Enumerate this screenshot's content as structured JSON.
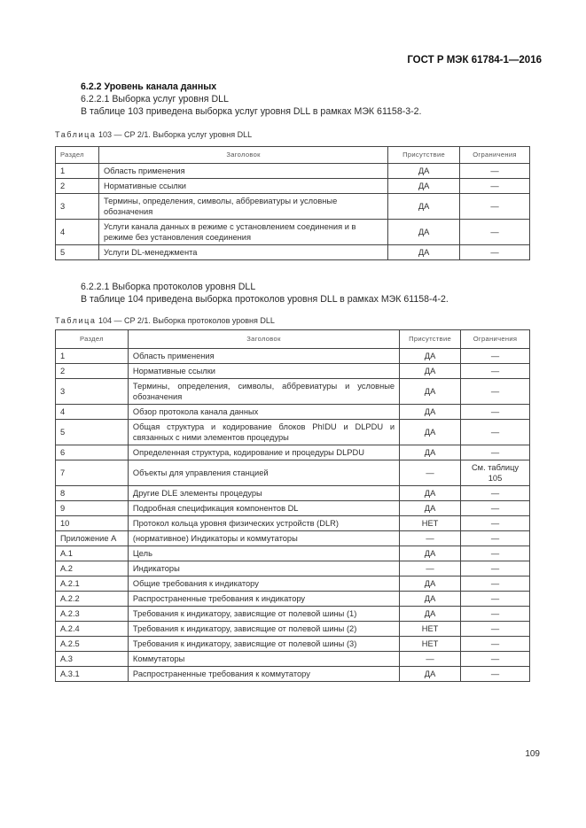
{
  "header": {
    "doc_id": "ГОСТ Р МЭК 61784-1—2016"
  },
  "section": {
    "heading": "6.2.2 Уровень канала данных",
    "sub1": "6.2.2.1 Выборка услуг уровня DLL",
    "text1": "В таблице 103 приведена выборка услуг уровня DLL в рамках МЭК 61158-3-2.",
    "sub2": "6.2.2.1 Выборка протоколов уровня DLL",
    "text2": "В таблице 104 приведена выборка протоколов уровня DLL в рамках МЭК 61158-4-2."
  },
  "table103": {
    "caption_prefix": "Таблица",
    "caption_rest": " 103 — CP 2/1. Выборка услуг уровня DLL",
    "columns": [
      "Раздел",
      "Заголовок",
      "Присутствие",
      "Ограничения"
    ],
    "rows": [
      [
        "1",
        "Область применения",
        "ДА",
        "—"
      ],
      [
        "2",
        "Нормативные ссылки",
        "ДА",
        "—"
      ],
      [
        "3",
        "Термины, определения, символы, аббревиатуры и условные обозначения",
        "ДА",
        "—"
      ],
      [
        "4",
        "Услуги канала данных в режиме с установлением соединения и в режиме без установления соединения",
        "ДА",
        "—"
      ],
      [
        "5",
        "Услуги DL-менеджмента",
        "ДА",
        "—"
      ]
    ]
  },
  "table104": {
    "caption_prefix": "Таблица",
    "caption_rest": " 104 — CP 2/1. Выборка протоколов уровня DLL",
    "columns": [
      "Раздел",
      "Заголовок",
      "Присутствие",
      "Ограничения"
    ],
    "rows": [
      [
        "1",
        "Область применения",
        "ДА",
        "—"
      ],
      [
        "2",
        "Нормативные ссылки",
        "ДА",
        "—"
      ],
      [
        "3",
        "Термины, определения, символы, аббревиатуры и условные обозначения",
        "ДА",
        "—"
      ],
      [
        "4",
        "Обзор протокола канала данных",
        "ДА",
        "—"
      ],
      [
        "5",
        "Общая структура и кодирование блоков PhIDU и DLPDU и связанных с ними элементов процедуры",
        "ДА",
        "—"
      ],
      [
        "6",
        "Определенная структура, кодирование и процедуры DLPDU",
        "ДА",
        "—"
      ],
      [
        "7",
        "Объекты для управления станцией",
        "—",
        "См. таблицу 105"
      ],
      [
        "8",
        "Другие DLE элементы процедуры",
        "ДА",
        "—"
      ],
      [
        "9",
        "Подробная спецификация компонентов DL",
        "ДА",
        "—"
      ],
      [
        "10",
        "Протокол кольца уровня физических устройств (DLR)",
        "НЕТ",
        "—"
      ],
      [
        "Приложение А",
        "(нормативное) Индикаторы и коммутаторы",
        "—",
        "—"
      ],
      [
        "A.1",
        "Цель",
        "ДА",
        "—"
      ],
      [
        "A.2",
        "Индикаторы",
        "—",
        "—"
      ],
      [
        "A.2.1",
        "Общие требования к индикатору",
        "ДА",
        "—"
      ],
      [
        "A.2.2",
        "Распространенные требования к индикатору",
        "ДА",
        "—"
      ],
      [
        "A.2.3",
        "Требования к индикатору, зависящие от полевой шины (1)",
        "ДА",
        "—"
      ],
      [
        "A.2.4",
        "Требования к индикатору, зависящие от полевой шины (2)",
        "НЕТ",
        "—"
      ],
      [
        "A.2.5",
        "Требования к индикатору, зависящие от полевой шины (3)",
        "НЕТ",
        "—"
      ],
      [
        "A.3",
        "Коммутаторы",
        "—",
        "—"
      ],
      [
        "A.3.1",
        "Распространенные требования к коммутатору",
        "ДА",
        "—"
      ]
    ]
  },
  "footer": {
    "page_number": "109"
  }
}
